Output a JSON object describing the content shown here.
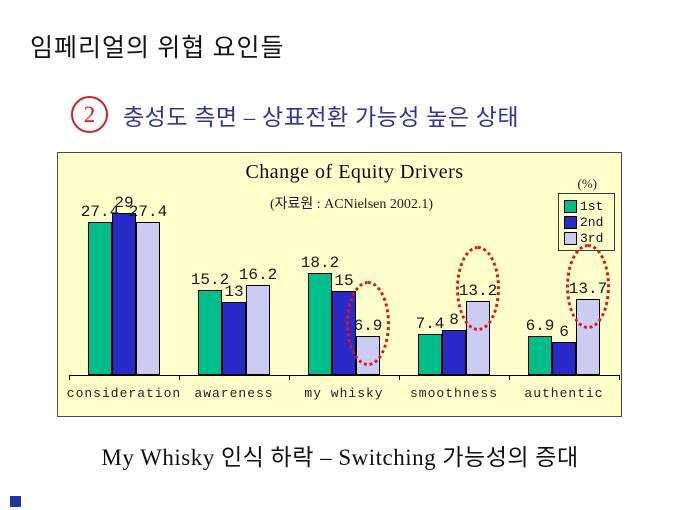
{
  "slide": {
    "title": "임페리얼의 위협 요인들",
    "point_number": "2",
    "heading": "충성도 측면 – 상표전환 가능성 높은 상태",
    "caption": "My Whisky 인식 하락 – Switching 가능성의 증대"
  },
  "colors": {
    "chart_background": "#FFFFCC",
    "heading_blue": "#333399",
    "accent_red": "#CC2222",
    "series_1st": "#00BE8C",
    "series_2nd": "#2929C8",
    "series_3rd": "#CCCCF2"
  },
  "chart_data": {
    "type": "bar",
    "title": "Change of Equity Drivers",
    "subtitle": "(자료원 : ACNielsen 2002.1)",
    "unit_label": "(%)",
    "categories": [
      "consideration",
      "awareness",
      "my whisky",
      "smoothness",
      "authentic"
    ],
    "series": [
      {
        "name": "1st",
        "color": "#00BE8C",
        "values": [
          27.4,
          15.2,
          18.2,
          7.4,
          6.9
        ]
      },
      {
        "name": "2nd",
        "color": "#2929C8",
        "values": [
          29,
          13,
          15,
          8,
          6
        ]
      },
      {
        "name": "3rd",
        "color": "#CCCCF2",
        "values": [
          27.4,
          16.2,
          6.9,
          13.2,
          13.7
        ]
      }
    ],
    "legend_position": "top-right",
    "grid": false,
    "ylim": [
      0,
      32
    ],
    "annotations": {
      "highlight_style": "red-dotted-ellipse",
      "highlight_series": "3rd",
      "highlight_categories": [
        "my whisky",
        "smoothness",
        "authentic"
      ]
    }
  }
}
